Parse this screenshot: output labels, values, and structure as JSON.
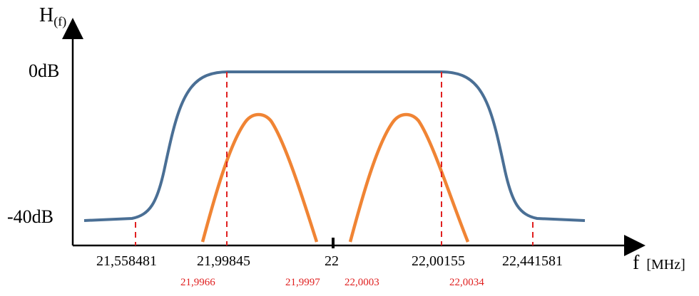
{
  "axes": {
    "y_label_main": "H",
    "y_label_sub": "(f)",
    "x_label_main": "f",
    "x_label_unit": "[MHz]",
    "y_ticks": [
      "0dB",
      "-40dB"
    ]
  },
  "freq_labels_black": [
    "21,558481",
    "21,99845",
    "22",
    "22,00155",
    "22,441581"
  ],
  "freq_labels_red": [
    "21,9966",
    "21,9997",
    "22,0003",
    "22,0034"
  ],
  "colors": {
    "filter_curve": "#4a6f95",
    "signal_curves": "#f08434",
    "markers": "#e02020",
    "axes": "#000000"
  }
}
